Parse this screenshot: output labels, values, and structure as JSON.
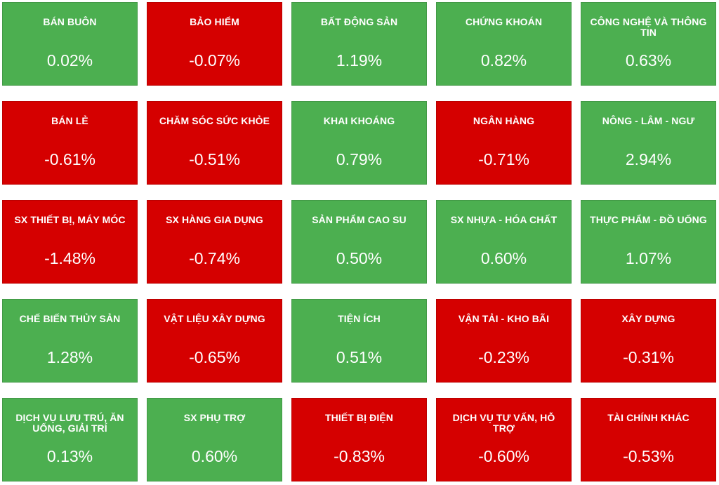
{
  "colors": {
    "up": "#4caf50",
    "down": "#d50000",
    "text": "#ffffff"
  },
  "sectors": [
    {
      "name": "BÁN BUÔN",
      "change": "0.02%",
      "trend": "up"
    },
    {
      "name": "BẢO HIỂM",
      "change": "-0.07%",
      "trend": "down"
    },
    {
      "name": "BẤT ĐỘNG SẢN",
      "change": "1.19%",
      "trend": "up"
    },
    {
      "name": "CHỨNG KHOÁN",
      "change": "0.82%",
      "trend": "up"
    },
    {
      "name": "CÔNG NGHỆ VÀ THÔNG TIN",
      "change": "0.63%",
      "trend": "up"
    },
    {
      "name": "BÁN LẺ",
      "change": "-0.61%",
      "trend": "down"
    },
    {
      "name": "CHĂM SÓC SỨC KHỎE",
      "change": "-0.51%",
      "trend": "down"
    },
    {
      "name": "KHAI KHOÁNG",
      "change": "0.79%",
      "trend": "up"
    },
    {
      "name": "NGÂN HÀNG",
      "change": "-0.71%",
      "trend": "down"
    },
    {
      "name": "NÔNG - LÂM - NGƯ",
      "change": "2.94%",
      "trend": "up"
    },
    {
      "name": "SX THIẾT BỊ, MÁY MÓC",
      "change": "-1.48%",
      "trend": "down"
    },
    {
      "name": "SX HÀNG GIA DỤNG",
      "change": "-0.74%",
      "trend": "down"
    },
    {
      "name": "SẢN PHẨM CAO SU",
      "change": "0.50%",
      "trend": "up"
    },
    {
      "name": "SX NHỰA - HÓA CHẤT",
      "change": "0.60%",
      "trend": "up"
    },
    {
      "name": "THỰC PHẨM - ĐỒ UỐNG",
      "change": "1.07%",
      "trend": "up"
    },
    {
      "name": "CHẾ BIẾN THỦY SẢN",
      "change": "1.28%",
      "trend": "up"
    },
    {
      "name": "VẬT LIỆU XÂY DỰNG",
      "change": "-0.65%",
      "trend": "down"
    },
    {
      "name": "TIỆN ÍCH",
      "change": "0.51%",
      "trend": "up"
    },
    {
      "name": "VẬN TẢI - KHO BÃI",
      "change": "-0.23%",
      "trend": "down"
    },
    {
      "name": "XÂY DỰNG",
      "change": "-0.31%",
      "trend": "down"
    },
    {
      "name": "DỊCH VỤ LƯU TRÚ, ĂN UỐNG, GIẢI TRÍ",
      "change": "0.13%",
      "trend": "up"
    },
    {
      "name": "SX PHỤ TRỢ",
      "change": "0.60%",
      "trend": "up"
    },
    {
      "name": "THIẾT BỊ ĐIỆN",
      "change": "-0.83%",
      "trend": "down"
    },
    {
      "name": "DỊCH VỤ TƯ VẤN, HỖ TRỢ",
      "change": "-0.60%",
      "trend": "down"
    },
    {
      "name": "TÀI CHÍNH KHÁC",
      "change": "-0.53%",
      "trend": "down"
    }
  ]
}
